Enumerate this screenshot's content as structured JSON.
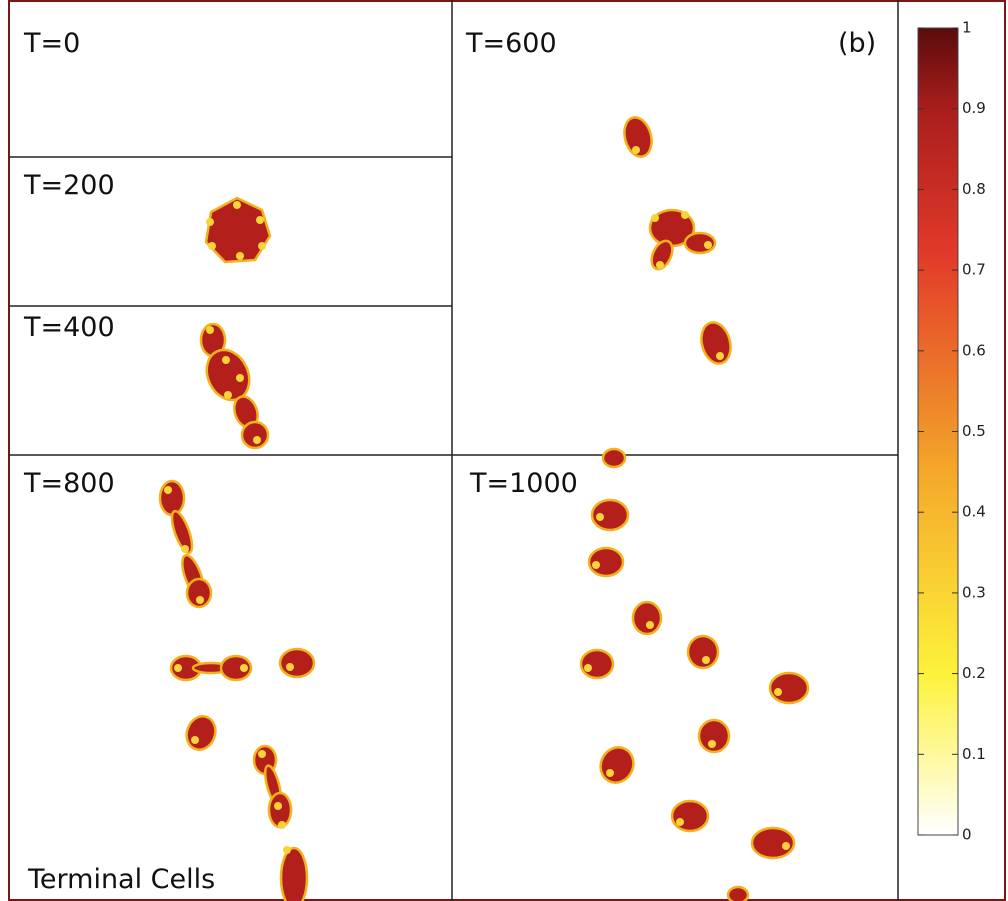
{
  "figure_label": "(b)",
  "panels": [
    {
      "label": "T=0"
    },
    {
      "label": "T=200"
    },
    {
      "label": "T=400"
    },
    {
      "label": "T=600"
    },
    {
      "label": "T=800"
    },
    {
      "label": "T=1000"
    }
  ],
  "annotation": "Terminal Cells",
  "colorbar": {
    "lim": [
      0,
      1
    ],
    "ticks": [
      0,
      0.1,
      0.2,
      0.3,
      0.4,
      0.5,
      0.6,
      0.7,
      0.8,
      0.9,
      1
    ]
  }
}
